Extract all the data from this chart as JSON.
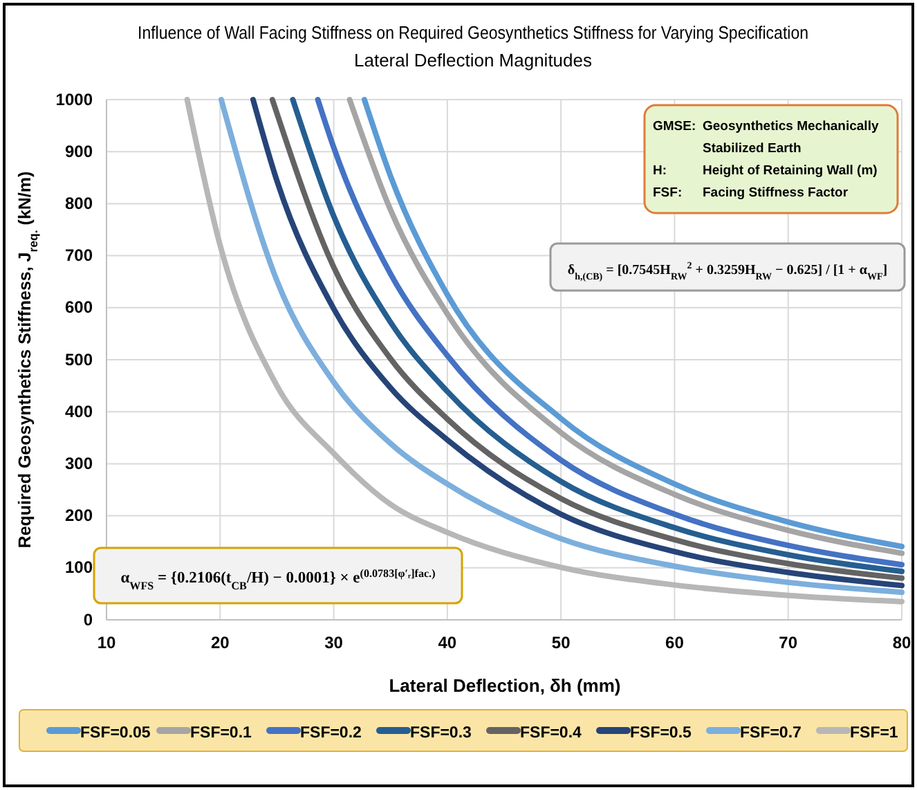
{
  "chart_data": {
    "type": "line",
    "title": "Influence of Wall Facing Stiffness on Required Geosynthetics Stiffness for Varying Specification Lateral Deflection Magnitudes",
    "xlabel": "Lateral Deflection, δh (mm)",
    "ylabel": "Required Geosynthetics Stiffness, J$_{req.}$ (kN/m)",
    "xlim": [
      10,
      80
    ],
    "xticks": [
      10,
      20,
      30,
      40,
      50,
      60,
      70,
      80
    ],
    "ylim": [
      0,
      1000
    ],
    "yticks": [
      0,
      100,
      200,
      300,
      400,
      500,
      600,
      700,
      800,
      900,
      1000
    ],
    "grid": true,
    "legend": "bottom",
    "marker": "none",
    "line_style": "solid",
    "annotations": [
      "GMSE: Geosynthetics Mechanically Stabilized Earth",
      "H: Height of Retaining Wall (m)",
      "FSF: Facing Stiffness Factor",
      "δ$_{h,(CB)}$ = [0.7545H$_{RW}$$^{2}$ + 0.3259H$_{RW}$ − 0.625] / [1 + α$_{WF}$]",
      "α$_{WFS}$ = {0.2106(t$_{CB}$/H) − 0.0001} × e$^{(0.0783[φ′ᵣ]fac.)}$"
    ],
    "series": [
      {
        "name": "FSF=0.05",
        "color": "#5b9bd5",
        "x": [
          32.7,
          35,
          40,
          50,
          60,
          70,
          80
        ],
        "values": [
          1000,
          853,
          625,
          387,
          261,
          188,
          141
        ]
      },
      {
        "name": "FSF=0.1",
        "color": "#a5a5a5",
        "x": [
          31.4,
          35,
          40,
          50,
          60,
          70,
          80
        ],
        "values": [
          1000,
          788,
          588,
          360,
          241,
          172,
          128
        ]
      },
      {
        "name": "FSF=0.2",
        "color": "#4472c4",
        "x": [
          28.6,
          30,
          35,
          40,
          50,
          60,
          70,
          80
        ],
        "values": [
          1000,
          908,
          665,
          508,
          307,
          203,
          143,
          106
        ]
      },
      {
        "name": "FSF=0.3",
        "color": "#255e91",
        "x": [
          26.4,
          30,
          35,
          40,
          50,
          60,
          70,
          80
        ],
        "values": [
          1000,
          776,
          572,
          439,
          266,
          177,
          125,
          93
        ]
      },
      {
        "name": "FSF=0.4",
        "color": "#636363",
        "x": [
          24.6,
          30,
          35,
          40,
          50,
          60,
          70,
          80
        ],
        "values": [
          1000,
          678,
          502,
          386,
          233,
          154,
          108,
          80
        ]
      },
      {
        "name": "FSF=0.5",
        "color": "#264478",
        "x": [
          22.9,
          25,
          30,
          35,
          40,
          50,
          60,
          70,
          80
        ],
        "values": [
          1000,
          844,
          598,
          446,
          346,
          203,
          131,
          91,
          66
        ]
      },
      {
        "name": "FSF=0.7",
        "color": "#7cafdd",
        "x": [
          20.1,
          25,
          30,
          35,
          40,
          50,
          60,
          70,
          80
        ],
        "values": [
          1000,
          652,
          457,
          339,
          261,
          156,
          103,
          72,
          53
        ]
      },
      {
        "name": "FSF=1",
        "color": "#b7b7b7",
        "x": [
          17.1,
          20,
          25,
          30,
          35,
          40,
          50,
          60,
          70,
          80
        ],
        "values": [
          1000,
          720,
          450,
          320,
          222,
          168,
          101,
          67,
          47,
          35
        ]
      }
    ]
  }
}
